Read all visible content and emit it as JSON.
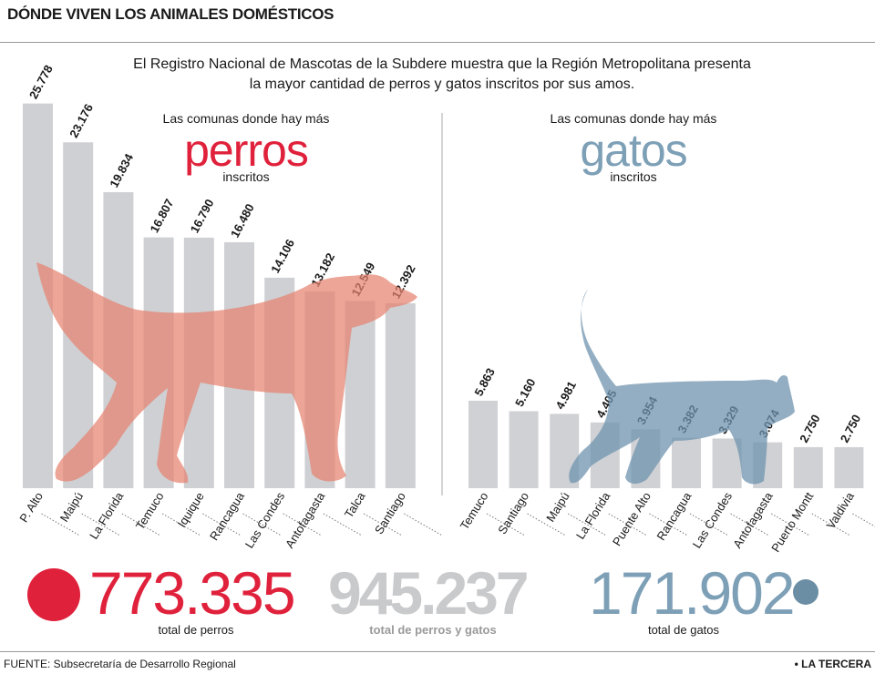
{
  "title": "DÓNDE VIVEN LOS ANIMALES DOMÉSTICOS",
  "intro": "El Registro Nacional de Mascotas de la Subdere muestra que la Región Metropolitana presenta la mayor cantidad de perros y gatos inscritos por sus amos.",
  "dogs_header": {
    "line1": "Las comunas donde hay más",
    "big": "perros",
    "line3": "inscritos"
  },
  "cats_header": {
    "line1": "Las comunas donde hay más",
    "big": "gatos",
    "line3": "inscritos"
  },
  "totals": {
    "dogs": {
      "value": "773.335",
      "label": "total de perros"
    },
    "all": {
      "value": "945.237",
      "label": "total de perros y gatos"
    },
    "cats": {
      "value": "171.902",
      "label": "total de gatos"
    }
  },
  "footer": {
    "source": "FUENTE: Subsecretaría de Desarrollo Regional",
    "brand": "• LA TERCERA"
  },
  "colors": {
    "dog_accent": "#e0213b",
    "cat_accent": "#7ea0b7",
    "bar": "#cfd0d4",
    "dog_silhouette": "#e5826f",
    "cat_silhouette": "#6f93ad"
  },
  "chart_data": [
    {
      "type": "bar",
      "title": "perros",
      "categories": [
        "P. Alto",
        "Maipú",
        "La Florida",
        "Temuco",
        "Iquique",
        "Rancagua",
        "Las Condes",
        "Antofagasta",
        "Talca",
        "Santiago"
      ],
      "values": [
        25778,
        23176,
        19834,
        16807,
        16790,
        16480,
        14106,
        13182,
        12549,
        12392
      ],
      "value_labels": [
        "25.778",
        "23.176",
        "19.834",
        "16.807",
        "16.790",
        "16.480",
        "14.106",
        "13.182",
        "12.549",
        "12.392"
      ],
      "ylim": [
        0,
        26000
      ],
      "grid": false
    },
    {
      "type": "bar",
      "title": "gatos",
      "categories": [
        "Temuco",
        "Santiago",
        "Maipú",
        "La Florida",
        "Puente Alto",
        "Rancagua",
        "Las Condes",
        "Antofagasta",
        "Puerto Montt",
        "Valdivia"
      ],
      "values": [
        5863,
        5160,
        4981,
        4405,
        3954,
        3382,
        3329,
        3074,
        2750,
        2750
      ],
      "value_labels": [
        "5.863",
        "5.160",
        "4.981",
        "4.405",
        "3.954",
        "3.382",
        "3.329",
        "3.074",
        "2.750",
        "2.750"
      ],
      "ylim": [
        0,
        26000
      ],
      "grid": false
    }
  ]
}
